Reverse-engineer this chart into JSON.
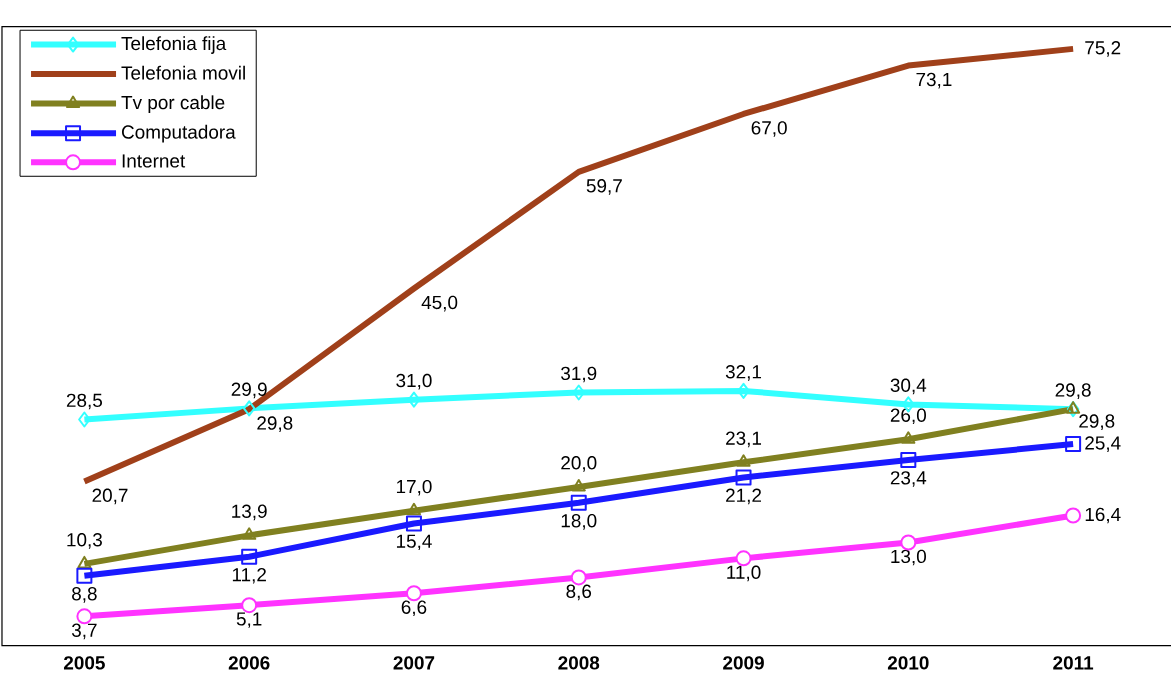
{
  "chart_data": {
    "type": "line",
    "categories": [
      "2005",
      "2006",
      "2007",
      "2008",
      "2009",
      "2010",
      "2011"
    ],
    "ylim": [
      0,
      78
    ],
    "legend": "top left",
    "series": [
      {
        "name": "Telefonia fija",
        "color": "#33ffff",
        "marker": "diamond",
        "values": [
          28.5,
          29.9,
          31.0,
          31.9,
          32.1,
          30.4,
          29.8
        ],
        "value_labels": [
          "28,5",
          "29,9",
          "31,0",
          "31,9",
          "32,1",
          "30,4",
          "29,8"
        ]
      },
      {
        "name": "Telefonia movil",
        "color": "#a0401a",
        "marker": "none",
        "values": [
          20.7,
          29.8,
          45.0,
          59.7,
          67.0,
          73.1,
          75.2
        ],
        "value_labels": [
          "20,7",
          "29,8",
          "45,0",
          "59,7",
          "67,0",
          "73,1",
          "75,2"
        ]
      },
      {
        "name": "Tv por cable",
        "color": "#808020",
        "marker": "triangle",
        "values": [
          10.3,
          13.9,
          17.0,
          20.0,
          23.1,
          26.0,
          29.8
        ],
        "value_labels": [
          "10,3",
          "13,9",
          "17,0",
          "20,0",
          "23,1",
          "26,0",
          "29,8"
        ]
      },
      {
        "name": "Computadora",
        "color": "#1a1aff",
        "marker": "square",
        "values": [
          8.8,
          11.2,
          15.4,
          18.0,
          21.2,
          23.4,
          25.4
        ],
        "value_labels": [
          "8,8",
          "11,2",
          "15,4",
          "18,0",
          "21,2",
          "23,4",
          "25,4"
        ]
      },
      {
        "name": "Internet",
        "color": "#ff33ff",
        "marker": "circle",
        "values": [
          3.7,
          5.1,
          6.6,
          8.6,
          11.0,
          13.0,
          16.4
        ],
        "value_labels": [
          "3,7",
          "5,1",
          "6,6",
          "8,6",
          "11,0",
          "13,0",
          "16,4"
        ]
      }
    ]
  }
}
